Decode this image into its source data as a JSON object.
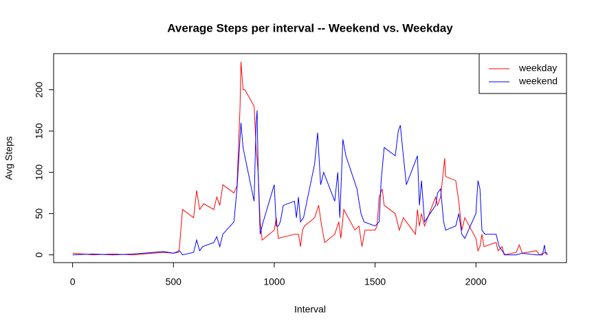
{
  "chart_data": {
    "type": "line",
    "title": "Average Steps per interval -- Weekend vs. Weekday",
    "x_label": "Interval",
    "y_label": "Avg Steps",
    "xlim": [
      -94.2,
      2449.2
    ],
    "xticks": [
      0,
      500,
      1000,
      1500,
      2000
    ],
    "ylim": [
      -9.4,
      243.8
    ],
    "yticks": [
      0,
      50,
      100,
      150,
      200
    ],
    "legend": "topright",
    "series": [
      {
        "name": "weekday",
        "color": "#ff0000",
        "x": [
          0,
          100,
          200,
          300,
          400,
          450,
          500,
          525,
          530,
          545,
          600,
          615,
          630,
          650,
          700,
          715,
          730,
          745,
          800,
          815,
          830,
          835,
          845,
          855,
          900,
          910,
          920,
          930,
          940,
          1000,
          1010,
          1020,
          1100,
          1120,
          1130,
          1140,
          1150,
          1200,
          1220,
          1235,
          1250,
          1300,
          1320,
          1330,
          1345,
          1400,
          1420,
          1435,
          1450,
          1500,
          1510,
          1520,
          1535,
          1545,
          1600,
          1620,
          1640,
          1700,
          1710,
          1720,
          1730,
          1745,
          1800,
          1810,
          1825,
          1845,
          1850,
          1900,
          1915,
          1930,
          1945,
          2000,
          2010,
          2020,
          2030,
          2040,
          2100,
          2110,
          2130,
          2140,
          2200,
          2215,
          2230,
          2300,
          2315,
          2345,
          2355
        ],
        "values": [
          2,
          0,
          1,
          0,
          2,
          3,
          2,
          3,
          10,
          55,
          45,
          78,
          55,
          62,
          55,
          70,
          60,
          85,
          75,
          84,
          178,
          234,
          200,
          200,
          180,
          130,
          100,
          40,
          18,
          30,
          45,
          20,
          25,
          25,
          10,
          30,
          35,
          45,
          60,
          35,
          15,
          25,
          40,
          20,
          55,
          30,
          35,
          10,
          30,
          30,
          35,
          70,
          80,
          60,
          50,
          30,
          45,
          25,
          55,
          35,
          50,
          35,
          70,
          60,
          70,
          117,
          95,
          90,
          65,
          30,
          45,
          20,
          5,
          10,
          25,
          10,
          15,
          5,
          10,
          0,
          3,
          12,
          2,
          5,
          0,
          3,
          2
        ]
      },
      {
        "name": "weekend",
        "color": "#0000ff",
        "x": [
          0,
          100,
          200,
          300,
          400,
          450,
          500,
          530,
          545,
          600,
          615,
          630,
          645,
          700,
          715,
          730,
          745,
          800,
          815,
          825,
          835,
          845,
          900,
          910,
          915,
          920,
          930,
          945,
          1000,
          1010,
          1020,
          1030,
          1045,
          1100,
          1110,
          1120,
          1130,
          1145,
          1200,
          1215,
          1230,
          1245,
          1300,
          1315,
          1325,
          1340,
          1355,
          1410,
          1420,
          1430,
          1445,
          1500,
          1520,
          1530,
          1545,
          1600,
          1615,
          1625,
          1640,
          1655,
          1710,
          1720,
          1730,
          1745,
          1800,
          1810,
          1825,
          1840,
          1850,
          1900,
          1915,
          1930,
          1945,
          2000,
          2010,
          2020,
          2030,
          2045,
          2100,
          2115,
          2130,
          2145,
          2200,
          2230,
          2300,
          2330,
          2340,
          2345,
          2355
        ],
        "values": [
          0,
          1,
          0,
          1,
          3,
          4,
          2,
          5,
          0,
          3,
          18,
          5,
          10,
          15,
          22,
          10,
          25,
          40,
          80,
          120,
          160,
          130,
          65,
          160,
          175,
          100,
          25,
          40,
          85,
          35,
          35,
          40,
          60,
          65,
          45,
          70,
          40,
          45,
          110,
          148,
          85,
          100,
          65,
          100,
          45,
          140,
          120,
          80,
          65,
          50,
          40,
          35,
          40,
          90,
          130,
          120,
          150,
          157,
          120,
          85,
          120,
          60,
          90,
          40,
          60,
          75,
          80,
          40,
          30,
          35,
          50,
          25,
          20,
          50,
          90,
          80,
          30,
          25,
          25,
          10,
          5,
          0,
          0,
          2,
          0,
          0,
          12,
          2,
          0
        ]
      }
    ]
  }
}
